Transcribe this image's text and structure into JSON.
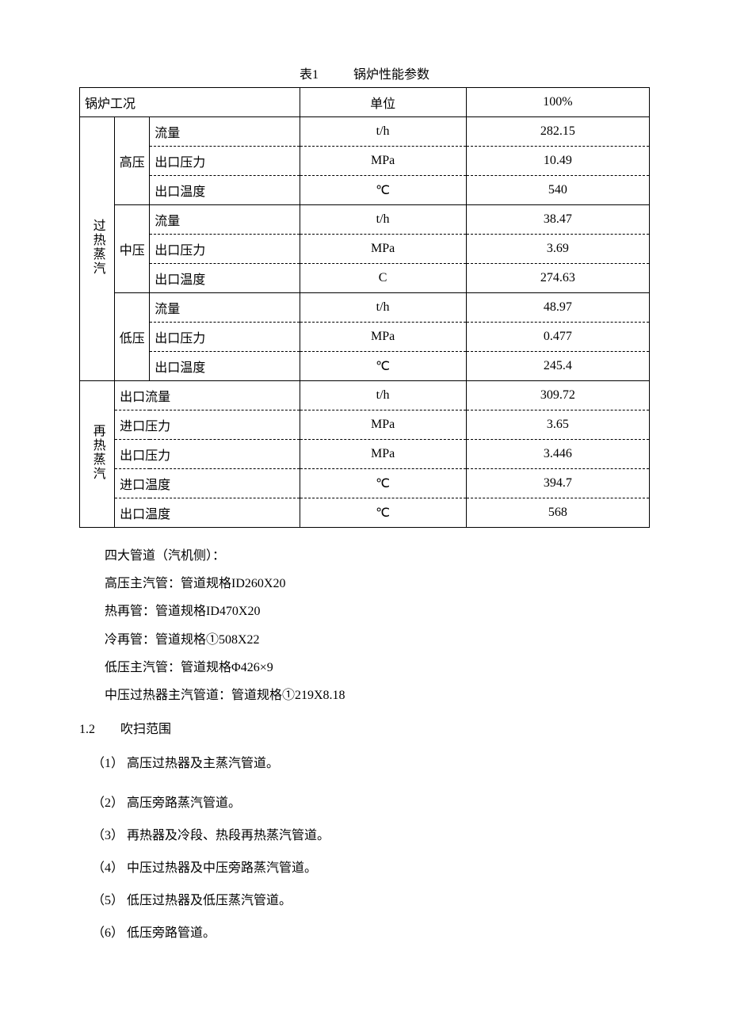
{
  "caption": {
    "label": "表1",
    "title": "锅炉性能参数"
  },
  "header": {
    "condition": "锅炉工况",
    "unit": "单位",
    "percent": "100%"
  },
  "groups": [
    {
      "name": "过热蒸汽",
      "subs": [
        {
          "name": "高压",
          "rows": [
            {
              "param": "流量",
              "unit": "t/h",
              "value": "282.15"
            },
            {
              "param": "出口压力",
              "unit": "MPa",
              "value": "10.49"
            },
            {
              "param": "出口温度",
              "unit": "℃",
              "value": "540"
            }
          ]
        },
        {
          "name": "中压",
          "rows": [
            {
              "param": "流量",
              "unit": "t/h",
              "value": "38.47"
            },
            {
              "param": "出口压力",
              "unit": "MPa",
              "value": "3.69"
            },
            {
              "param": "出口温度",
              "unit": "C",
              "value": "274.63"
            }
          ]
        },
        {
          "name": "低压",
          "rows": [
            {
              "param": "流量",
              "unit": "t/h",
              "value": "48.97"
            },
            {
              "param": "出口压力",
              "unit": "MPa",
              "value": "0.477"
            },
            {
              "param": "出口温度",
              "unit": "℃",
              "value": "245.4"
            }
          ]
        }
      ]
    },
    {
      "name": "再热蒸汽",
      "rows": [
        {
          "param": "出口流量",
          "unit": "t/h",
          "value": "309.72"
        },
        {
          "param": "进口压力",
          "unit": "MPa",
          "value": "3.65"
        },
        {
          "param": "出口压力",
          "unit": "MPa",
          "value": "3.446"
        },
        {
          "param": "进口温度",
          "unit": "℃",
          "value": "394.7"
        },
        {
          "param": "出口温度",
          "unit": "℃",
          "value": "568"
        }
      ]
    }
  ],
  "pipes": {
    "intro": "四大管道（汽机侧）：",
    "lines": [
      "高压主汽管：管道规格ID260X20",
      "热再管：管道规格ID470X20",
      "冷再管：管道规格①508X22",
      "低压主汽管：管道规格Φ426×9",
      "中压过热器主汽管道：管道规格①219X8.18"
    ]
  },
  "section": {
    "num": "1.2",
    "title": "吹扫范围"
  },
  "items": [
    "（1）  高压过热器及主蒸汽管道。",
    "（2）  高压旁路蒸汽管道。",
    "（3）  再热器及冷段、热段再热蒸汽管道。",
    "（4）  中压过热器及中压旁路蒸汽管道。",
    "（5）  低压过热器及低压蒸汽管道。",
    "（6）  低压旁路管道。"
  ]
}
